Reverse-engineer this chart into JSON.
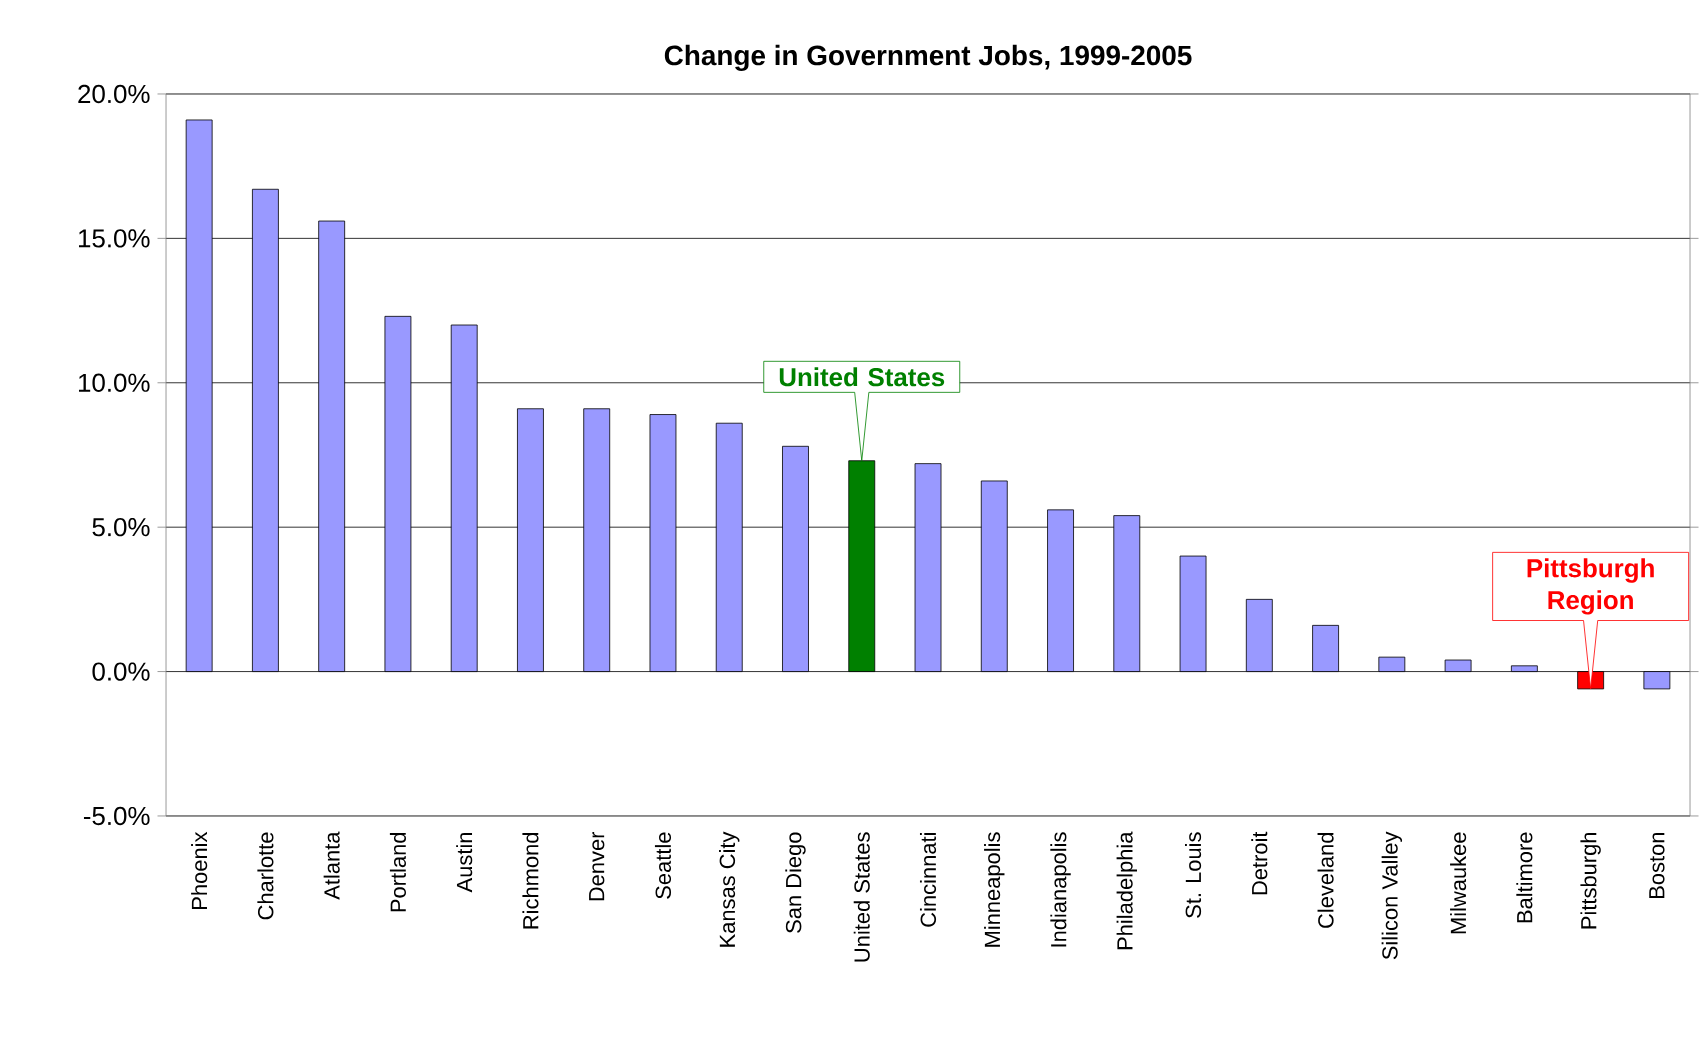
{
  "chart_data": {
    "type": "bar",
    "title": "Change in Government Jobs, 1999-2005",
    "categories": [
      "Phoenix",
      "Charlotte",
      "Atlanta",
      "Portland",
      "Austin",
      "Richmond",
      "Denver",
      "Seattle",
      "Kansas City",
      "San Diego",
      "United States",
      "Cincinnati",
      "Minneapolis",
      "Indianapolis",
      "Philadelphia",
      "St. Louis",
      "Detroit",
      "Cleveland",
      "Silicon Valley",
      "Milwaukee",
      "Baltimore",
      "Pittsburgh",
      "Boston"
    ],
    "values": [
      19.1,
      16.7,
      15.6,
      12.3,
      12.0,
      9.1,
      9.1,
      8.9,
      8.6,
      7.8,
      7.3,
      7.2,
      6.6,
      5.6,
      5.4,
      4.0,
      2.5,
      1.6,
      0.5,
      0.4,
      0.2,
      -0.6,
      -0.6
    ],
    "colors": [
      "#9999ff",
      "#9999ff",
      "#9999ff",
      "#9999ff",
      "#9999ff",
      "#9999ff",
      "#9999ff",
      "#9999ff",
      "#9999ff",
      "#9999ff",
      "#008000",
      "#9999ff",
      "#9999ff",
      "#9999ff",
      "#9999ff",
      "#9999ff",
      "#9999ff",
      "#9999ff",
      "#9999ff",
      "#9999ff",
      "#9999ff",
      "#ff0000",
      "#9999ff"
    ],
    "ylim": [
      -5,
      20
    ],
    "yticks": [
      {
        "value": -5,
        "label": "-5.0%"
      },
      {
        "value": 0,
        "label": "0.0%"
      },
      {
        "value": 5,
        "label": "5.0%"
      },
      {
        "value": 10,
        "label": "10.0%"
      },
      {
        "value": 15,
        "label": "15.0%"
      },
      {
        "value": 20,
        "label": "20.0%"
      }
    ],
    "grid": "y",
    "annotations": [
      {
        "text": "United States",
        "x": "United States",
        "y": 7.3
      },
      {
        "text": "Pittsburgh Region",
        "x": "Pittsburgh",
        "y": -0.6
      }
    ]
  }
}
